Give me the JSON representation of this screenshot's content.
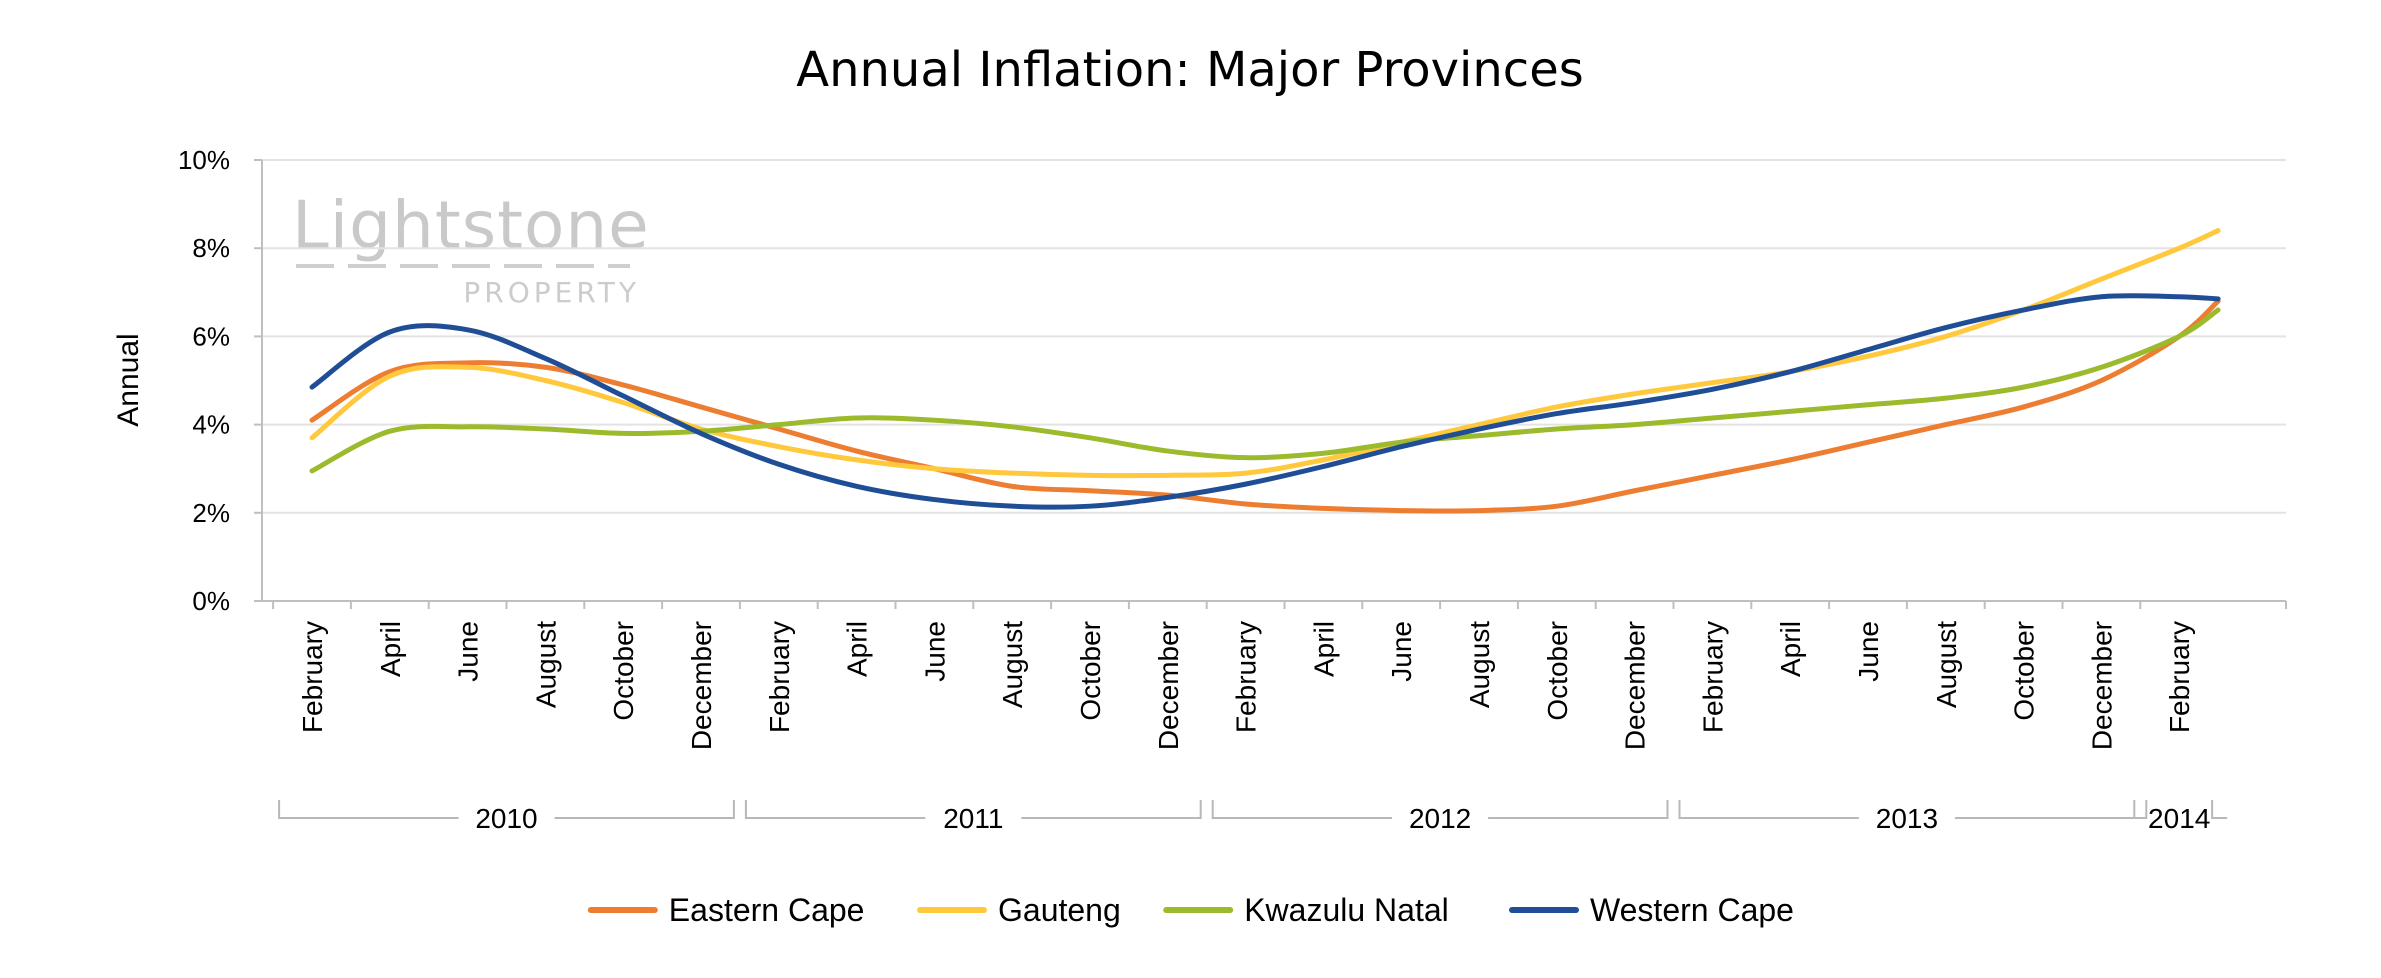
{
  "watermark": {
    "brand": "Lightstone",
    "sub": "PROPERTY"
  },
  "chart_data": {
    "type": "line",
    "title": "Annual Inflation: Major Provinces",
    "ylabel": "Annual",
    "xlabel": "",
    "ylim": [
      0,
      10
    ],
    "yticks": [
      "0%",
      "2%",
      "4%",
      "6%",
      "8%",
      "10%"
    ],
    "categories": [
      "February",
      "April",
      "June",
      "August",
      "October",
      "December",
      "February",
      "April",
      "June",
      "August",
      "October",
      "December",
      "February",
      "April",
      "June",
      "August",
      "October",
      "December",
      "February",
      "April",
      "June",
      "August",
      "October",
      "December",
      "February"
    ],
    "year_groups": [
      {
        "label": "2010",
        "start": 0,
        "end": 5
      },
      {
        "label": "2011",
        "start": 6,
        "end": 11
      },
      {
        "label": "2012",
        "start": 12,
        "end": 17
      },
      {
        "label": "2013",
        "start": 18,
        "end": 23
      },
      {
        "label": "2014",
        "start": 24,
        "end": 24
      }
    ],
    "series": [
      {
        "name": "Eastern Cape",
        "color": "#ED7D31",
        "points": [
          [
            0,
            4.1
          ],
          [
            1,
            5.2
          ],
          [
            2,
            5.4
          ],
          [
            3,
            5.3
          ],
          [
            4,
            4.9
          ],
          [
            5,
            4.4
          ],
          [
            6,
            3.9
          ],
          [
            7,
            3.4
          ],
          [
            8,
            3.0
          ],
          [
            9,
            2.6
          ],
          [
            10,
            2.5
          ],
          [
            11,
            2.4
          ],
          [
            12,
            2.2
          ],
          [
            13,
            2.1
          ],
          [
            14,
            2.05
          ],
          [
            15,
            2.05
          ],
          [
            16,
            2.15
          ],
          [
            17,
            2.5
          ],
          [
            18,
            2.85
          ],
          [
            19,
            3.2
          ],
          [
            20,
            3.6
          ],
          [
            21,
            4.0
          ],
          [
            22,
            4.4
          ],
          [
            23,
            5.0
          ],
          [
            24,
            6.0
          ],
          [
            24.5,
            6.8
          ]
        ]
      },
      {
        "name": "Gauteng",
        "color": "#FFC83D",
        "points": [
          [
            0,
            3.7
          ],
          [
            1,
            5.1
          ],
          [
            2,
            5.3
          ],
          [
            3,
            5.0
          ],
          [
            4,
            4.5
          ],
          [
            5,
            3.9
          ],
          [
            6,
            3.5
          ],
          [
            7,
            3.2
          ],
          [
            8,
            3.0
          ],
          [
            9,
            2.9
          ],
          [
            10,
            2.85
          ],
          [
            11,
            2.85
          ],
          [
            12,
            2.9
          ],
          [
            13,
            3.2
          ],
          [
            14,
            3.6
          ],
          [
            15,
            4.0
          ],
          [
            16,
            4.4
          ],
          [
            17,
            4.7
          ],
          [
            18,
            4.95
          ],
          [
            19,
            5.2
          ],
          [
            20,
            5.55
          ],
          [
            21,
            6.0
          ],
          [
            22,
            6.6
          ],
          [
            23,
            7.3
          ],
          [
            24,
            8.0
          ],
          [
            24.5,
            8.4
          ]
        ]
      },
      {
        "name": "Kwazulu Natal",
        "color": "#9BBB2C",
        "points": [
          [
            0,
            2.95
          ],
          [
            1,
            3.85
          ],
          [
            2,
            3.95
          ],
          [
            3,
            3.9
          ],
          [
            4,
            3.8
          ],
          [
            5,
            3.85
          ],
          [
            6,
            4.0
          ],
          [
            7,
            4.15
          ],
          [
            8,
            4.1
          ],
          [
            9,
            3.95
          ],
          [
            10,
            3.7
          ],
          [
            11,
            3.4
          ],
          [
            12,
            3.25
          ],
          [
            13,
            3.35
          ],
          [
            14,
            3.6
          ],
          [
            15,
            3.75
          ],
          [
            16,
            3.9
          ],
          [
            17,
            4.0
          ],
          [
            18,
            4.15
          ],
          [
            19,
            4.3
          ],
          [
            20,
            4.45
          ],
          [
            21,
            4.6
          ],
          [
            22,
            4.85
          ],
          [
            23,
            5.3
          ],
          [
            24,
            6.0
          ],
          [
            24.5,
            6.6
          ]
        ]
      },
      {
        "name": "Western Cape",
        "color": "#1F4E96",
        "points": [
          [
            0,
            4.85
          ],
          [
            1,
            6.1
          ],
          [
            2,
            6.15
          ],
          [
            3,
            5.5
          ],
          [
            4,
            4.65
          ],
          [
            5,
            3.8
          ],
          [
            6,
            3.1
          ],
          [
            7,
            2.6
          ],
          [
            8,
            2.3
          ],
          [
            9,
            2.15
          ],
          [
            10,
            2.15
          ],
          [
            11,
            2.35
          ],
          [
            12,
            2.65
          ],
          [
            13,
            3.05
          ],
          [
            14,
            3.5
          ],
          [
            15,
            3.9
          ],
          [
            16,
            4.25
          ],
          [
            17,
            4.5
          ],
          [
            18,
            4.8
          ],
          [
            19,
            5.2
          ],
          [
            20,
            5.7
          ],
          [
            21,
            6.2
          ],
          [
            22,
            6.6
          ],
          [
            23,
            6.9
          ],
          [
            24,
            6.9
          ],
          [
            24.5,
            6.85
          ]
        ]
      }
    ],
    "legend_position": "bottom",
    "grid": "horizontal"
  }
}
